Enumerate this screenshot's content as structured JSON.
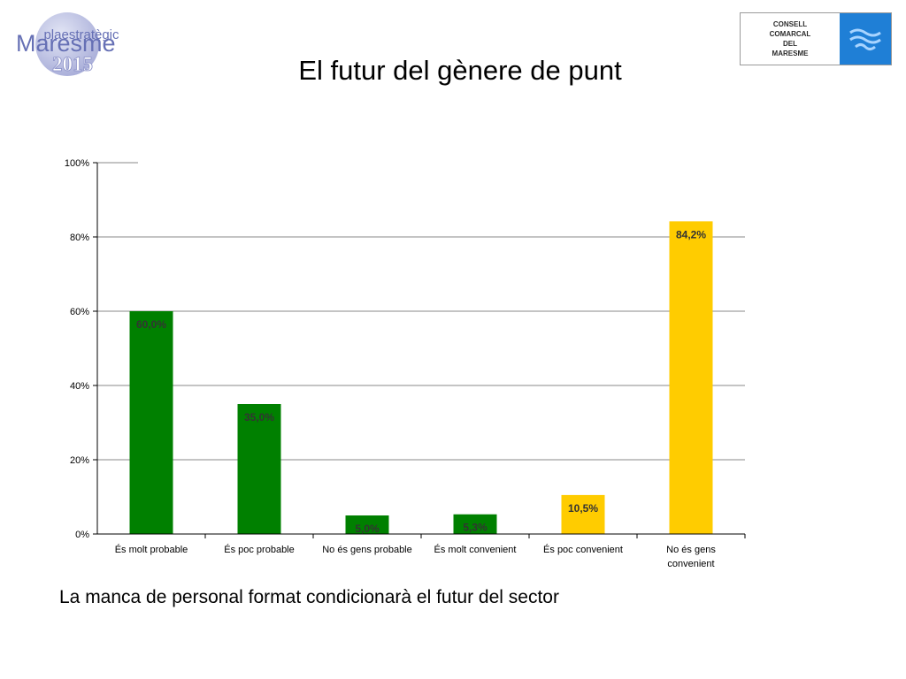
{
  "header": {
    "logo_left": {
      "line1": "plaestratègic",
      "line2": "Maresme",
      "line3": "2015"
    },
    "logo_right": {
      "lines": [
        "CONSELL",
        "COMARCAL",
        "DEL",
        "MARESME"
      ],
      "color": "#1f7fd6"
    }
  },
  "title": "El futur del gènere de punt",
  "chart_data": {
    "type": "bar",
    "title": "",
    "xlabel": "",
    "ylabel": "",
    "ylim": [
      0,
      100
    ],
    "grid": true,
    "yticks": [
      "0%",
      "20%",
      "40%",
      "60%",
      "80%",
      "100%"
    ],
    "categories": [
      "És molt probable",
      "És poc probable",
      "No és gens probable",
      "És molt convenient",
      "És poc convenient",
      "No és gens convenient"
    ],
    "values": [
      60.0,
      35.0,
      5.0,
      5.3,
      10.5,
      84.2
    ],
    "data_labels": [
      "60,0%",
      "35,0%",
      "5,0%",
      "5,3%",
      "10,5%",
      "84,2%"
    ],
    "colors": [
      "#008000",
      "#008000",
      "#008000",
      "#008000",
      "#ffcc00",
      "#ffcc00"
    ]
  },
  "footer": "La manca de personal format condicionarà el futur del sector"
}
